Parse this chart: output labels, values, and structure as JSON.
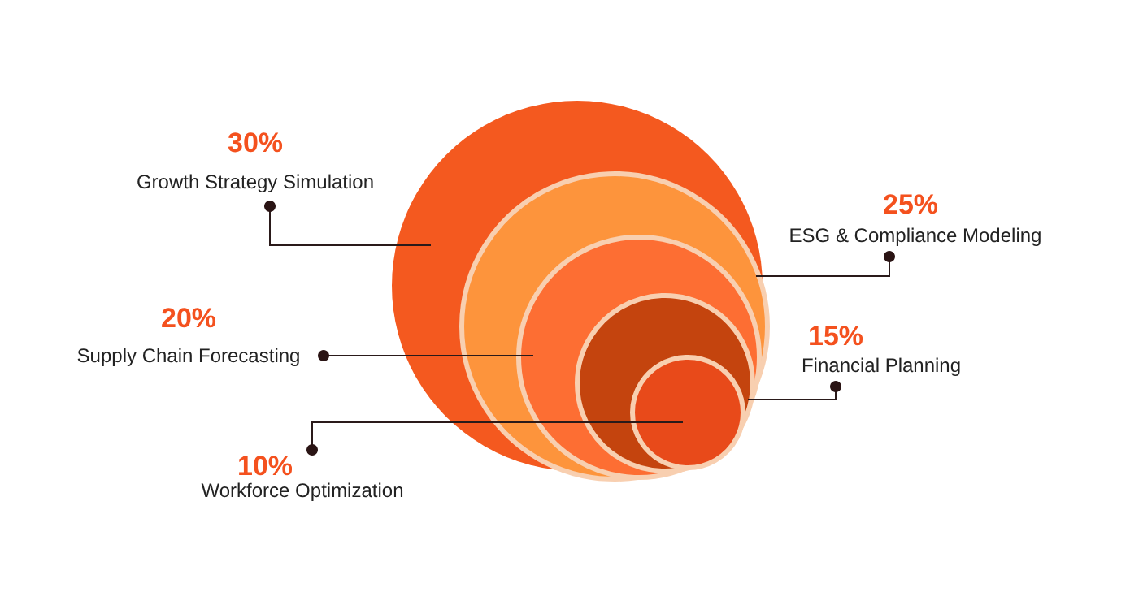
{
  "chart_data": {
    "type": "other",
    "categories": [
      "Growth Strategy Simulation",
      "ESG & Compliance Modeling",
      "Supply Chain Forecasting",
      "Financial Planning",
      "Workforce Optimization"
    ],
    "values": [
      30,
      25,
      20,
      15,
      10
    ],
    "value_labels": [
      "30%",
      "25%",
      "20%",
      "15%",
      "10%"
    ],
    "colors": [
      "#f4591f",
      "#fd943c",
      "#fd6e33",
      "#c4440e",
      "#e84a1a"
    ]
  }
}
